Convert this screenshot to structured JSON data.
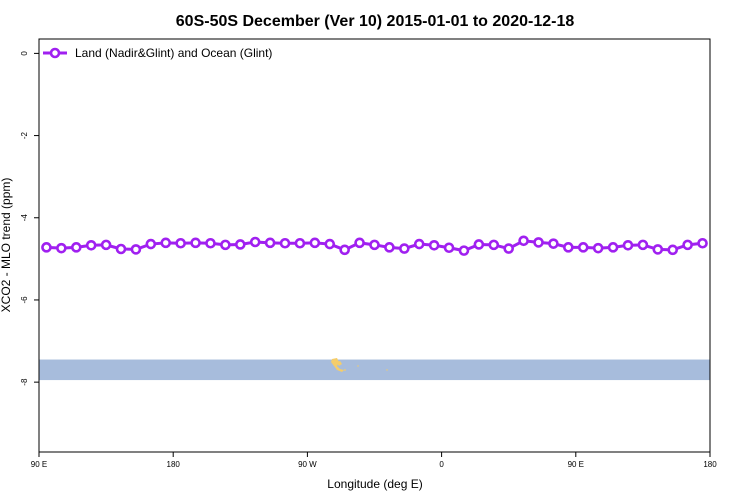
{
  "chart_data": {
    "type": "line",
    "title": "60S-50S December (Ver 10)   2015-01-01 to 2020-12-18",
    "xlabel": "Longitude (deg E)",
    "ylabel": "XCO2 - MLO trend (ppm)",
    "xlim": [
      90,
      540
    ],
    "ylim": [
      -9.7,
      0.35
    ],
    "x_ticks": [
      {
        "value": 90,
        "label": "90 E"
      },
      {
        "value": 180,
        "label": "180"
      },
      {
        "value": 270,
        "label": "90 W"
      },
      {
        "value": 360,
        "label": "0"
      },
      {
        "value": 450,
        "label": "90 E"
      },
      {
        "value": 540,
        "label": "180"
      }
    ],
    "y_ticks": [
      0,
      -2,
      -4,
      -6,
      -8
    ],
    "grid": false,
    "legend_position": "top-left",
    "series": [
      {
        "name": "Land (Nadir&Glint) and Ocean (Glint)",
        "color": "#a020f0",
        "x": [
          95,
          105,
          115,
          125,
          135,
          145,
          155,
          165,
          175,
          185,
          195,
          205,
          215,
          225,
          235,
          245,
          255,
          265,
          275,
          285,
          295,
          305,
          315,
          325,
          335,
          345,
          355,
          365,
          375,
          385,
          395,
          405,
          415,
          425,
          435,
          445,
          455,
          465,
          475,
          485,
          495,
          505,
          515,
          525,
          535
        ],
        "values": [
          -4.72,
          -4.74,
          -4.72,
          -4.67,
          -4.66,
          -4.76,
          -4.77,
          -4.64,
          -4.61,
          -4.62,
          -4.61,
          -4.62,
          -4.66,
          -4.65,
          -4.59,
          -4.61,
          -4.62,
          -4.62,
          -4.61,
          -4.64,
          -4.78,
          -4.61,
          -4.66,
          -4.72,
          -4.75,
          -4.64,
          -4.67,
          -4.73,
          -4.8,
          -4.65,
          -4.66,
          -4.75,
          -4.56,
          -4.6,
          -4.63,
          -4.72,
          -4.72,
          -4.74,
          -4.72,
          -4.67,
          -4.66,
          -4.77,
          -4.78,
          -4.66,
          -4.62
        ]
      }
    ],
    "map_overlay": {
      "band_y_range": [
        -7.45,
        -7.95
      ],
      "band_color": "#a7bcdc",
      "land_color": "#f5cd6a"
    }
  }
}
